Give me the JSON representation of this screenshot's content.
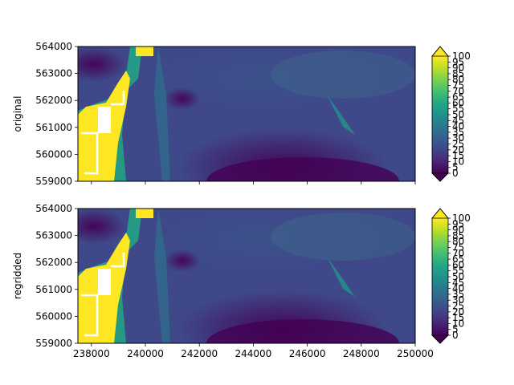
{
  "chart_data": [
    {
      "type": "heatmap",
      "title": "",
      "ylabel": "original",
      "xlabel": "",
      "xlim": [
        237500,
        250000
      ],
      "ylim": [
        559000,
        564000
      ],
      "x_ticks": [
        238000,
        240000,
        242000,
        244000,
        246000,
        248000,
        250000
      ],
      "x_tick_labels": [],
      "y_ticks": [
        559000,
        560000,
        561000,
        562000,
        563000,
        564000
      ],
      "y_tick_labels": [
        "559000",
        "560000",
        "561000",
        "562000",
        "563000",
        "564000"
      ],
      "colormap": "viridis",
      "value_range": [
        0,
        100
      ],
      "colorbar_ticks": [
        0,
        5,
        10,
        15,
        20,
        25,
        30,
        35,
        40,
        45,
        50,
        55,
        60,
        65,
        70,
        75,
        80,
        85,
        90,
        95,
        100
      ],
      "colorbar_tick_labels": [
        "0",
        "5",
        "10",
        "15",
        "20",
        "25",
        "30",
        "35",
        "40",
        "45",
        "50",
        "55",
        "60",
        "65",
        "70",
        "75",
        "80",
        "85",
        "90",
        "95",
        "100"
      ],
      "colorbar_extend": "both",
      "grid": false
    },
    {
      "type": "heatmap",
      "title": "",
      "ylabel": "regridded",
      "xlabel": "",
      "xlim": [
        237500,
        250000
      ],
      "ylim": [
        559000,
        564000
      ],
      "x_ticks": [
        238000,
        240000,
        242000,
        244000,
        246000,
        248000,
        250000
      ],
      "x_tick_labels": [
        "238000",
        "240000",
        "242000",
        "244000",
        "246000",
        "248000",
        "250000"
      ],
      "y_ticks": [
        559000,
        560000,
        561000,
        562000,
        563000,
        564000
      ],
      "y_tick_labels": [
        "559000",
        "560000",
        "561000",
        "562000",
        "563000",
        "564000"
      ],
      "colormap": "viridis",
      "value_range": [
        0,
        100
      ],
      "colorbar_ticks": [
        0,
        5,
        10,
        15,
        20,
        25,
        30,
        35,
        40,
        45,
        50,
        55,
        60,
        65,
        70,
        75,
        80,
        85,
        90,
        95,
        100
      ],
      "colorbar_tick_labels": [
        "0",
        "5",
        "10",
        "15",
        "20",
        "25",
        "30",
        "35",
        "40",
        "45",
        "50",
        "55",
        "60",
        "65",
        "70",
        "75",
        "80",
        "85",
        "90",
        "95",
        "100"
      ],
      "colorbar_extend": "both",
      "grid": false
    }
  ]
}
